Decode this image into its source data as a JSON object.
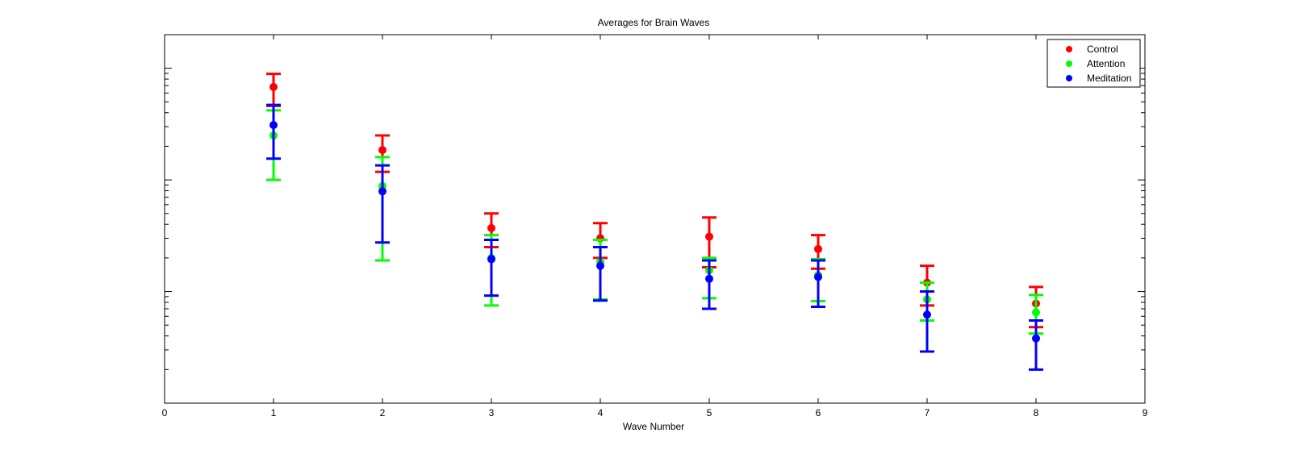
{
  "chart_data": {
    "type": "scatter",
    "title": "Averages for Brain Waves",
    "xlabel": "Wave Number",
    "ylabel": "",
    "xlim": [
      0,
      9
    ],
    "xticks": [
      "0",
      "1",
      "2",
      "3",
      "4",
      "5",
      "6",
      "7",
      "8",
      "9"
    ],
    "yscale": "log",
    "ylim": [
      0.01,
      20
    ],
    "ytick_labels_shown": false,
    "grid": false,
    "legend_position": "top-right",
    "series": [
      {
        "name": "Control",
        "color": "#ff0000",
        "x": [
          1,
          2,
          3,
          4,
          5,
          6,
          7,
          8
        ],
        "y": [
          6.8,
          1.85,
          0.37,
          0.3,
          0.31,
          0.24,
          0.12,
          0.078
        ],
        "lower": [
          4.6,
          1.18,
          0.25,
          0.2,
          0.165,
          0.16,
          0.075,
          0.048
        ],
        "upper": [
          8.9,
          2.5,
          0.5,
          0.41,
          0.46,
          0.32,
          0.17,
          0.11
        ]
      },
      {
        "name": "Attention",
        "color": "#00ff00",
        "x": [
          1,
          2,
          3,
          4,
          5,
          6,
          7,
          8
        ],
        "y": [
          2.5,
          0.88,
          0.2,
          0.185,
          0.155,
          0.14,
          0.085,
          0.065
        ],
        "lower": [
          1.0,
          0.19,
          0.075,
          0.085,
          0.087,
          0.082,
          0.055,
          0.042
        ],
        "upper": [
          4.2,
          1.6,
          0.32,
          0.29,
          0.2,
          0.195,
          0.12,
          0.093
        ]
      },
      {
        "name": "Meditation",
        "color": "#0000ff",
        "x": [
          1,
          2,
          3,
          4,
          5,
          6,
          7,
          8
        ],
        "y": [
          3.1,
          0.79,
          0.195,
          0.17,
          0.13,
          0.135,
          0.062,
          0.038
        ],
        "lower": [
          1.55,
          0.275,
          0.092,
          0.083,
          0.07,
          0.073,
          0.029,
          0.02
        ],
        "upper": [
          4.7,
          1.35,
          0.29,
          0.25,
          0.19,
          0.19,
          0.1,
          0.055
        ]
      }
    ]
  }
}
